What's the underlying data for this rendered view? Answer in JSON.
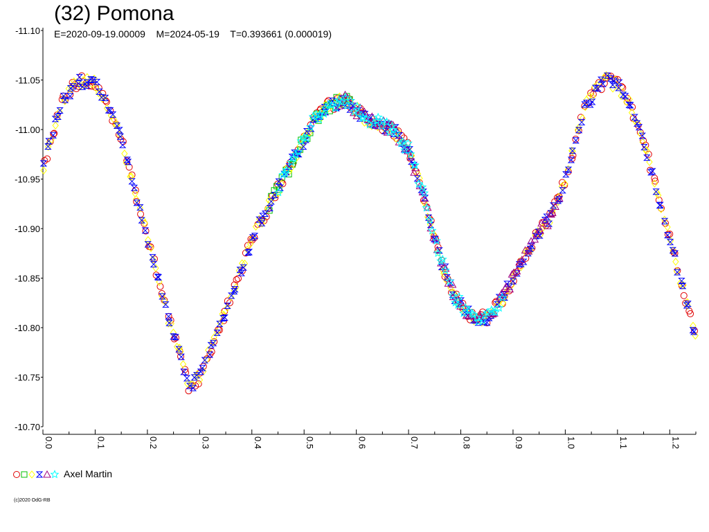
{
  "header": {
    "title": "(32) Pomona",
    "subtitle": "E=2020-09-19.00009    M=2024-05-19    T=0.393661 (0.000019)"
  },
  "legend": {
    "label": "Axel Martin",
    "markers": [
      "circle",
      "square",
      "diamond",
      "hourglass",
      "triangle",
      "star"
    ],
    "marker_colors": [
      "#e00000",
      "#00c000",
      "#ffff00",
      "#0000ff",
      "#a00080",
      "#00ffff"
    ]
  },
  "footer": {
    "copyright": "(c)2020 OdG-RB"
  },
  "chart_data": {
    "type": "scatter",
    "title": "(32) Pomona",
    "subtitle": "E=2020-09-19.00009    M=2024-05-19    T=0.393661 (0.000019)",
    "xlabel": "",
    "ylabel": "",
    "xlim": [
      0.0,
      1.25
    ],
    "ylim": [
      -11.1,
      -10.7
    ],
    "y_inverted": true,
    "grid": false,
    "x_ticks": [
      "0.0",
      "0.1",
      "0.2",
      "0.3",
      "0.4",
      "0.5",
      "0.6",
      "0.7",
      "0.8",
      "0.9",
      "1.0",
      "1.1",
      "1.2"
    ],
    "y_ticks": [
      "-11.10",
      "-11.05",
      "-11.00",
      "-10.95",
      "-10.90",
      "-10.85",
      "-10.80",
      "-10.75",
      "-10.70"
    ],
    "curve": {
      "x": [
        0.0,
        0.02,
        0.04,
        0.06,
        0.08,
        0.1,
        0.12,
        0.15,
        0.18,
        0.21,
        0.24,
        0.27,
        0.28,
        0.3,
        0.33,
        0.36,
        0.4,
        0.44,
        0.48,
        0.52,
        0.55,
        0.58,
        0.6,
        0.62,
        0.65,
        0.67,
        0.7,
        0.73,
        0.76,
        0.79,
        0.82,
        0.85,
        0.88,
        0.91,
        0.94,
        0.97,
        1.0,
        1.02,
        1.04,
        1.06,
        1.08,
        1.1,
        1.12,
        1.15,
        1.18,
        1.21,
        1.24,
        1.25
      ],
      "y": [
        -10.96,
        -11.0,
        -11.03,
        -11.045,
        -11.05,
        -11.045,
        -11.03,
        -10.99,
        -10.93,
        -10.87,
        -10.81,
        -10.76,
        -10.74,
        -10.75,
        -10.79,
        -10.83,
        -10.89,
        -10.93,
        -10.97,
        -11.01,
        -11.025,
        -11.03,
        -11.02,
        -11.01,
        -11.005,
        -11.0,
        -10.98,
        -10.93,
        -10.87,
        -10.83,
        -10.81,
        -10.81,
        -10.83,
        -10.86,
        -10.89,
        -10.91,
        -10.95,
        -10.99,
        -11.025,
        -11.04,
        -11.05,
        -11.045,
        -11.03,
        -10.99,
        -10.93,
        -10.87,
        -10.81,
        -10.79
      ]
    },
    "series": [
      {
        "name": "Axel Martin",
        "marker": "circle",
        "color": "#e00000",
        "x_range": [
          0.0,
          1.25
        ]
      },
      {
        "name": "Axel Martin",
        "marker": "square",
        "color": "#00c000",
        "x_range": [
          0.43,
          0.59
        ]
      },
      {
        "name": "Axel Martin",
        "marker": "diamond",
        "color": "#ffff00",
        "x_range": [
          0.0,
          1.25
        ]
      },
      {
        "name": "Axel Martin",
        "marker": "hourglass",
        "color": "#0000ff",
        "x_range": [
          0.0,
          1.25
        ]
      },
      {
        "name": "Axel Martin",
        "marker": "triangle",
        "color": "#a00080",
        "x_range": [
          0.56,
          0.99
        ]
      },
      {
        "name": "Axel Martin",
        "marker": "star",
        "color": "#00ffff",
        "x_range": [
          0.45,
          0.88
        ]
      }
    ]
  }
}
